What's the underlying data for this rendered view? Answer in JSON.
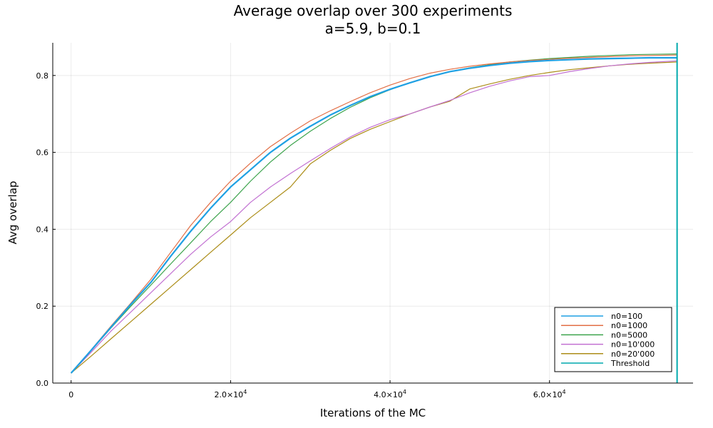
{
  "chart_data": {
    "type": "line",
    "title": "Average overlap over 300 experiments",
    "subtitle": "a=5.9, b=0.1",
    "xlabel": "Iterations of the MC",
    "ylabel": "Avg overlap",
    "xlim": [
      -2300,
      78000
    ],
    "ylim": [
      0.0,
      0.885
    ],
    "x_ticks": [
      {
        "value": 0,
        "mantissa": "0",
        "exponent": ""
      },
      {
        "value": 20000,
        "mantissa": "2.0×10",
        "exponent": "4"
      },
      {
        "value": 40000,
        "mantissa": "4.0×10",
        "exponent": "4"
      },
      {
        "value": 60000,
        "mantissa": "6.0×10",
        "exponent": "4"
      }
    ],
    "y_ticks": [
      {
        "value": 0.0,
        "label": "0.0"
      },
      {
        "value": 0.2,
        "label": "0.2"
      },
      {
        "value": 0.4,
        "label": "0.4"
      },
      {
        "value": 0.6,
        "label": "0.6"
      },
      {
        "value": 0.8,
        "label": "0.8"
      }
    ],
    "grid": true,
    "legend_position": "bottom-right",
    "series": [
      {
        "name": "n0=100",
        "color": "#1fa0e3",
        "points": [
          [
            0,
            0.026
          ],
          [
            2500,
            0.085
          ],
          [
            5000,
            0.145
          ],
          [
            7500,
            0.205
          ],
          [
            10000,
            0.262
          ],
          [
            12500,
            0.33
          ],
          [
            15000,
            0.395
          ],
          [
            17500,
            0.455
          ],
          [
            20000,
            0.51
          ],
          [
            22500,
            0.555
          ],
          [
            25000,
            0.6
          ],
          [
            27500,
            0.637
          ],
          [
            30000,
            0.668
          ],
          [
            32500,
            0.697
          ],
          [
            35000,
            0.722
          ],
          [
            37500,
            0.745
          ],
          [
            40000,
            0.764
          ],
          [
            42500,
            0.781
          ],
          [
            45000,
            0.797
          ],
          [
            47500,
            0.81
          ],
          [
            50000,
            0.819
          ],
          [
            52500,
            0.826
          ],
          [
            55000,
            0.832
          ],
          [
            57500,
            0.836
          ],
          [
            60000,
            0.839
          ],
          [
            62500,
            0.841
          ],
          [
            65000,
            0.843
          ],
          [
            67500,
            0.844
          ],
          [
            70000,
            0.845
          ],
          [
            72500,
            0.846
          ],
          [
            76000,
            0.846
          ]
        ]
      },
      {
        "name": "n0=1000",
        "color": "#e26f46",
        "points": [
          [
            0,
            0.026
          ],
          [
            2500,
            0.086
          ],
          [
            5000,
            0.148
          ],
          [
            7500,
            0.208
          ],
          [
            10000,
            0.27
          ],
          [
            12500,
            0.34
          ],
          [
            15000,
            0.41
          ],
          [
            17500,
            0.47
          ],
          [
            20000,
            0.525
          ],
          [
            22500,
            0.572
          ],
          [
            25000,
            0.615
          ],
          [
            27500,
            0.65
          ],
          [
            30000,
            0.682
          ],
          [
            32500,
            0.708
          ],
          [
            35000,
            0.732
          ],
          [
            37500,
            0.755
          ],
          [
            40000,
            0.775
          ],
          [
            42500,
            0.792
          ],
          [
            45000,
            0.806
          ],
          [
            47500,
            0.816
          ],
          [
            50000,
            0.824
          ],
          [
            52500,
            0.83
          ],
          [
            55000,
            0.835
          ],
          [
            57500,
            0.839
          ],
          [
            60000,
            0.842
          ],
          [
            62500,
            0.845
          ],
          [
            65000,
            0.847
          ],
          [
            67500,
            0.849
          ],
          [
            70000,
            0.851
          ],
          [
            72500,
            0.852
          ],
          [
            76000,
            0.853
          ]
        ]
      },
      {
        "name": "n0=5000",
        "color": "#3da44d",
        "points": [
          [
            0,
            0.026
          ],
          [
            2500,
            0.084
          ],
          [
            5000,
            0.143
          ],
          [
            7500,
            0.2
          ],
          [
            10000,
            0.255
          ],
          [
            12500,
            0.31
          ],
          [
            15000,
            0.365
          ],
          [
            17500,
            0.42
          ],
          [
            20000,
            0.47
          ],
          [
            22500,
            0.525
          ],
          [
            25000,
            0.575
          ],
          [
            27500,
            0.618
          ],
          [
            30000,
            0.655
          ],
          [
            32500,
            0.688
          ],
          [
            35000,
            0.717
          ],
          [
            37500,
            0.742
          ],
          [
            40000,
            0.763
          ],
          [
            42500,
            0.781
          ],
          [
            45000,
            0.797
          ],
          [
            47500,
            0.81
          ],
          [
            50000,
            0.82
          ],
          [
            52500,
            0.828
          ],
          [
            55000,
            0.835
          ],
          [
            57500,
            0.84
          ],
          [
            60000,
            0.844
          ],
          [
            62500,
            0.847
          ],
          [
            65000,
            0.85
          ],
          [
            67500,
            0.852
          ],
          [
            70000,
            0.854
          ],
          [
            72500,
            0.855
          ],
          [
            76000,
            0.856
          ]
        ]
      },
      {
        "name": "n0=10'000",
        "color": "#c271d2",
        "points": [
          [
            0,
            0.026
          ],
          [
            2500,
            0.08
          ],
          [
            5000,
            0.135
          ],
          [
            7500,
            0.185
          ],
          [
            10000,
            0.235
          ],
          [
            12500,
            0.285
          ],
          [
            15000,
            0.335
          ],
          [
            17500,
            0.38
          ],
          [
            20000,
            0.42
          ],
          [
            22500,
            0.47
          ],
          [
            25000,
            0.51
          ],
          [
            27500,
            0.545
          ],
          [
            30000,
            0.578
          ],
          [
            32500,
            0.61
          ],
          [
            35000,
            0.64
          ],
          [
            37500,
            0.665
          ],
          [
            40000,
            0.685
          ],
          [
            42500,
            0.7
          ],
          [
            45000,
            0.718
          ],
          [
            47500,
            0.735
          ],
          [
            50000,
            0.755
          ],
          [
            52500,
            0.772
          ],
          [
            55000,
            0.786
          ],
          [
            57500,
            0.797
          ],
          [
            60000,
            0.8
          ],
          [
            62500,
            0.81
          ],
          [
            65000,
            0.818
          ],
          [
            67500,
            0.825
          ],
          [
            70000,
            0.83
          ],
          [
            72500,
            0.834
          ],
          [
            76000,
            0.838
          ]
        ]
      },
      {
        "name": "n0=20'000",
        "color": "#ac8d18",
        "points": [
          [
            0,
            0.026
          ],
          [
            2500,
            0.07
          ],
          [
            5000,
            0.115
          ],
          [
            7500,
            0.16
          ],
          [
            10000,
            0.205
          ],
          [
            12500,
            0.25
          ],
          [
            15000,
            0.295
          ],
          [
            17500,
            0.34
          ],
          [
            20000,
            0.385
          ],
          [
            22500,
            0.43
          ],
          [
            25000,
            0.47
          ],
          [
            27500,
            0.51
          ],
          [
            30000,
            0.57
          ],
          [
            32500,
            0.605
          ],
          [
            35000,
            0.636
          ],
          [
            37500,
            0.66
          ],
          [
            40000,
            0.68
          ],
          [
            42500,
            0.7
          ],
          [
            45000,
            0.718
          ],
          [
            47500,
            0.733
          ],
          [
            50000,
            0.765
          ],
          [
            52500,
            0.778
          ],
          [
            55000,
            0.79
          ],
          [
            57500,
            0.8
          ],
          [
            60000,
            0.808
          ],
          [
            62500,
            0.815
          ],
          [
            65000,
            0.82
          ],
          [
            67500,
            0.825
          ],
          [
            70000,
            0.829
          ],
          [
            72500,
            0.832
          ],
          [
            76000,
            0.835
          ]
        ]
      },
      {
        "name": "Threshold",
        "color": "#00a9ad",
        "vline_x": 76000
      }
    ]
  }
}
